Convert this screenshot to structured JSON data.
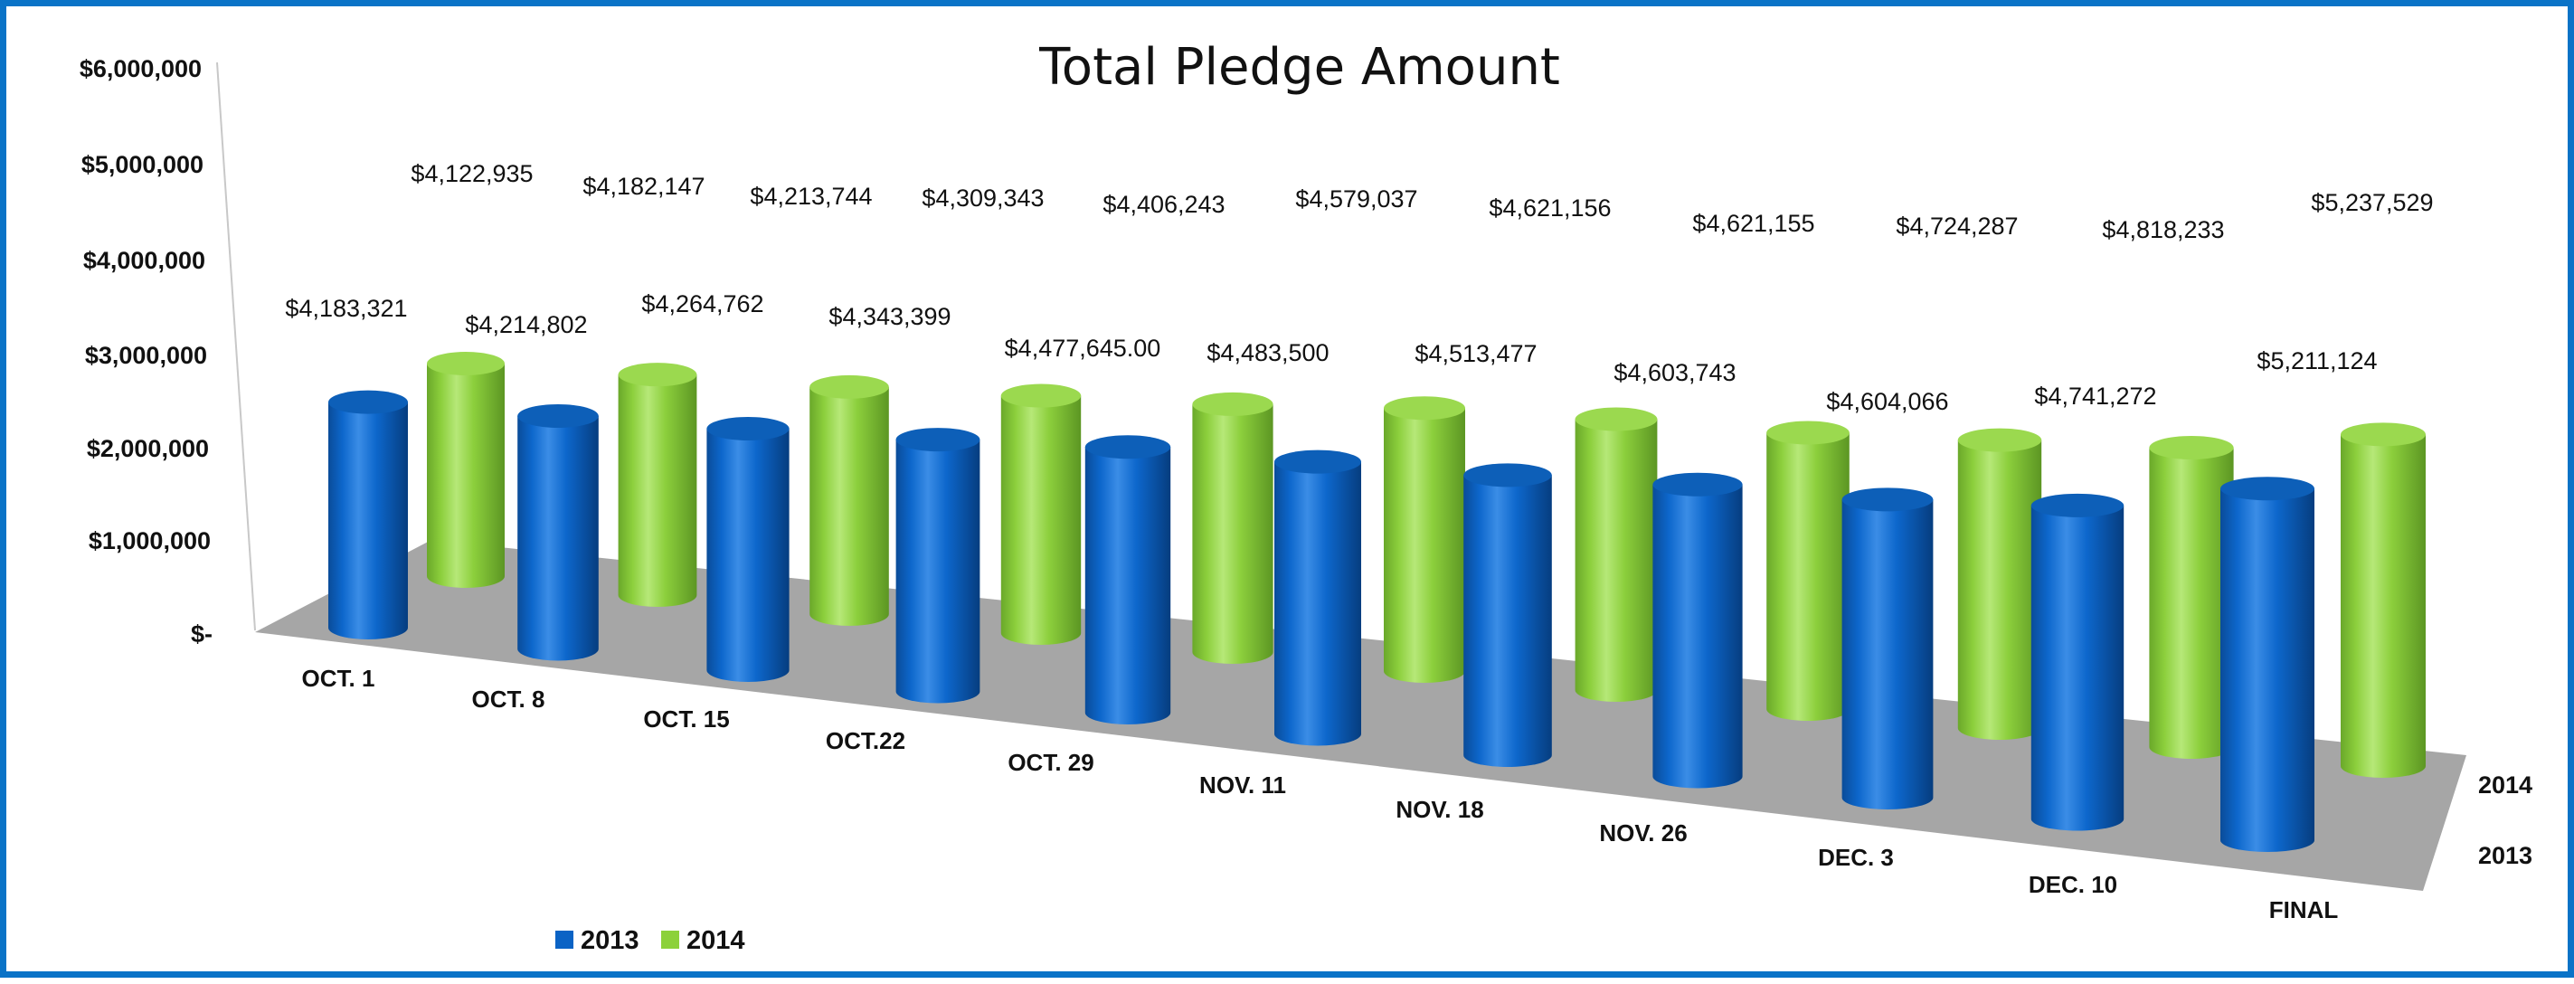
{
  "chart_data": {
    "type": "bar",
    "title": "Total Pledge Amount",
    "categories": [
      "OCT. 1",
      "OCT. 8",
      "OCT. 15",
      "OCT.22",
      "OCT. 29",
      "NOV. 11",
      "NOV. 18",
      "NOV. 26",
      "DEC. 3",
      "DEC. 10",
      "FINAL"
    ],
    "series": [
      {
        "name": "2013",
        "color": "#0b63c5",
        "values": [
          4183321,
          4214802,
          4264762,
          4343399,
          4477645,
          4483500,
          4513477,
          4603743,
          4604066,
          4741272,
          5211124
        ],
        "labels": [
          "$4,183,321",
          "$4,214,802",
          "$4,264,762",
          "$4,343,399",
          "$4,477,645.00",
          "$4,483,500",
          "$4,513,477",
          "$4,603,743",
          "$4,604,066",
          "$4,741,272",
          "$5,211,124"
        ]
      },
      {
        "name": "2014",
        "color": "#8cd13a",
        "values": [
          4122935,
          4182147,
          4213744,
          4309343,
          4406243,
          4579037,
          4621156,
          4621155,
          4724287,
          4818233,
          5237529
        ],
        "labels": [
          "$4,122,935",
          "$4,182,147",
          "$4,213,744",
          "$4,309,343",
          "$4,406,243",
          "$4,579,037",
          "$4,621,156",
          "$4,621,155",
          "$4,724,287",
          "$4,818,233",
          "$5,237,529"
        ]
      }
    ],
    "yticks": [
      "$-",
      "$1,000,000",
      "$2,000,000",
      "$3,000,000",
      "$4,000,000",
      "$5,000,000",
      "$6,000,000"
    ],
    "ylim": [
      0,
      6000000
    ],
    "series_axis": [
      "2014",
      "2013"
    ],
    "legend": {
      "position": "bottom-left",
      "items": [
        "2013",
        "2014"
      ]
    },
    "style": "3d-cylinder",
    "grid": false,
    "frame_color": "#0a73c7",
    "floor_color": "#a6a6a6"
  }
}
